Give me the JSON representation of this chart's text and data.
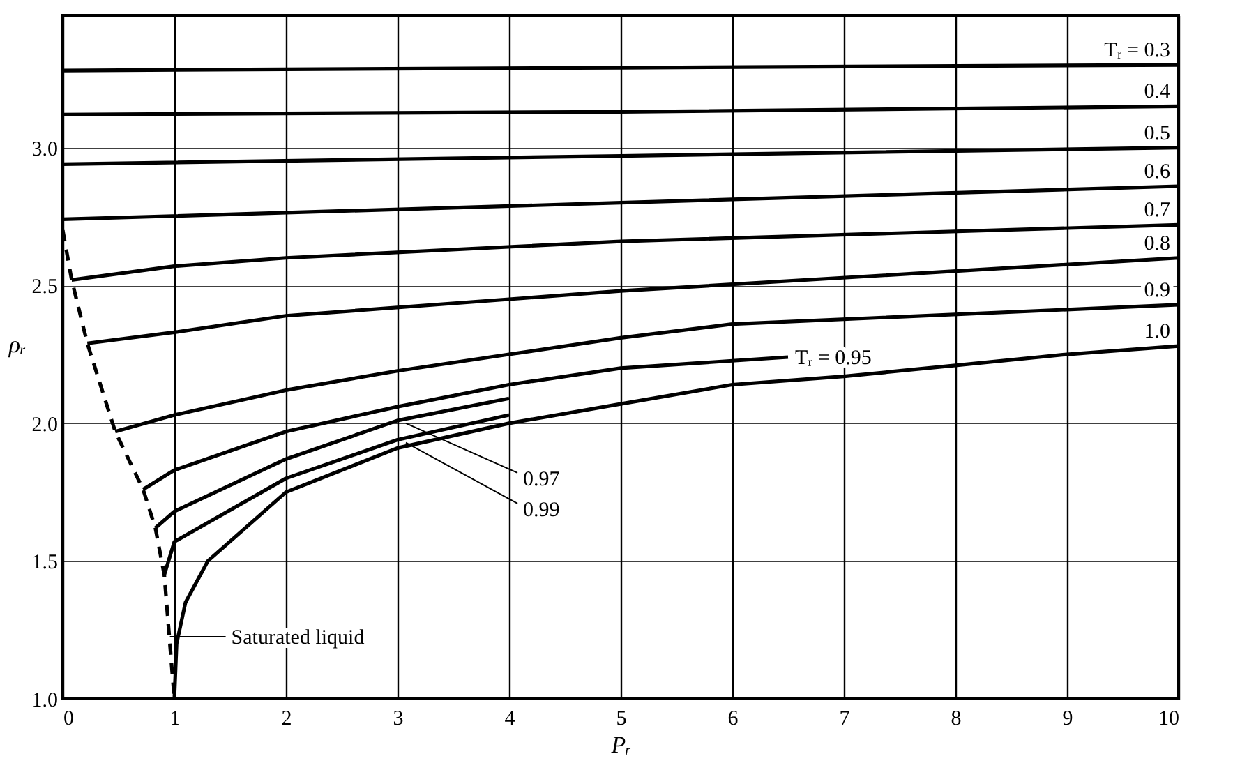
{
  "chart_data": {
    "type": "line",
    "xlabel": "Pᵣ",
    "ylabel": "ρᵣ",
    "xlim": [
      0,
      10
    ],
    "ylim": [
      1.0,
      3.48
    ],
    "xticks": [
      0,
      1,
      2,
      3,
      4,
      5,
      6,
      7,
      8,
      9,
      10
    ],
    "yticks": [
      {
        "value": 1.0,
        "label": "1.0"
      },
      {
        "value": 1.5,
        "label": "1.5"
      },
      {
        "value": 2.0,
        "label": "2.0"
      },
      {
        "value": 2.5,
        "label": "2.5"
      },
      {
        "value": 3.0,
        "label": "3.0"
      }
    ],
    "annotations": [
      "Saturated liquid"
    ],
    "grid": true,
    "marker": "none",
    "line_style": "solid",
    "series": [
      {
        "name": "Tᵣ = 0.3",
        "color": "#000000",
        "x": [
          0,
          5,
          10
        ],
        "values": [
          3.28,
          3.29,
          3.3
        ]
      },
      {
        "name": "0.4",
        "color": "#000000",
        "x": [
          0,
          5,
          10
        ],
        "values": [
          3.12,
          3.13,
          3.15
        ]
      },
      {
        "name": "0.5",
        "color": "#000000",
        "x": [
          0,
          5,
          10
        ],
        "values": [
          2.94,
          2.97,
          3.0
        ]
      },
      {
        "name": "0.6",
        "color": "#000000",
        "x": [
          0,
          5,
          10
        ],
        "values": [
          2.74,
          2.8,
          2.86
        ]
      },
      {
        "name": "0.7",
        "color": "#000000",
        "x": [
          0.08,
          1,
          2,
          5,
          10
        ],
        "values": [
          2.52,
          2.57,
          2.6,
          2.66,
          2.72
        ]
      },
      {
        "name": "0.8",
        "color": "#000000",
        "x": [
          0.22,
          1,
          2,
          5,
          10
        ],
        "values": [
          2.29,
          2.33,
          2.39,
          2.48,
          2.6
        ]
      },
      {
        "name": "0.9",
        "color": "#000000",
        "x": [
          0.47,
          1,
          2,
          3,
          4,
          5,
          6,
          10
        ],
        "values": [
          1.97,
          2.03,
          2.12,
          2.19,
          2.25,
          2.31,
          2.36,
          2.43
        ]
      },
      {
        "name": "1.0",
        "color": "#000000",
        "x": [
          1,
          1.02,
          1.1,
          1.3,
          2,
          3,
          4,
          5,
          6,
          7,
          8,
          9,
          10
        ],
        "values": [
          1.0,
          1.2,
          1.35,
          1.5,
          1.75,
          1.91,
          2.0,
          2.07,
          2.14,
          2.17,
          2.21,
          2.25,
          2.28
        ]
      },
      {
        "name": "Tᵣ = 0.95",
        "color": "#000000",
        "x": [
          0.72,
          1,
          2,
          3,
          4,
          5,
          6.5
        ],
        "values": [
          1.76,
          1.83,
          1.97,
          2.06,
          2.14,
          2.2,
          2.24
        ]
      },
      {
        "name": "0.97",
        "color": "#000000",
        "x": [
          0.83,
          1,
          2,
          3,
          4
        ],
        "values": [
          1.62,
          1.68,
          1.87,
          2.01,
          2.09
        ]
      },
      {
        "name": "0.99",
        "color": "#000000",
        "x": [
          0.91,
          1,
          2,
          3,
          4
        ],
        "values": [
          1.45,
          1.57,
          1.8,
          1.94,
          2.03
        ]
      },
      {
        "color": "#000000",
        "line_style": "dashed",
        "x": [
          0,
          0.08,
          0.22,
          0.47,
          0.72,
          0.83,
          0.91,
          1.0
        ],
        "values": [
          2.7,
          2.52,
          2.29,
          1.97,
          1.76,
          1.62,
          1.45,
          1.0
        ]
      }
    ]
  }
}
